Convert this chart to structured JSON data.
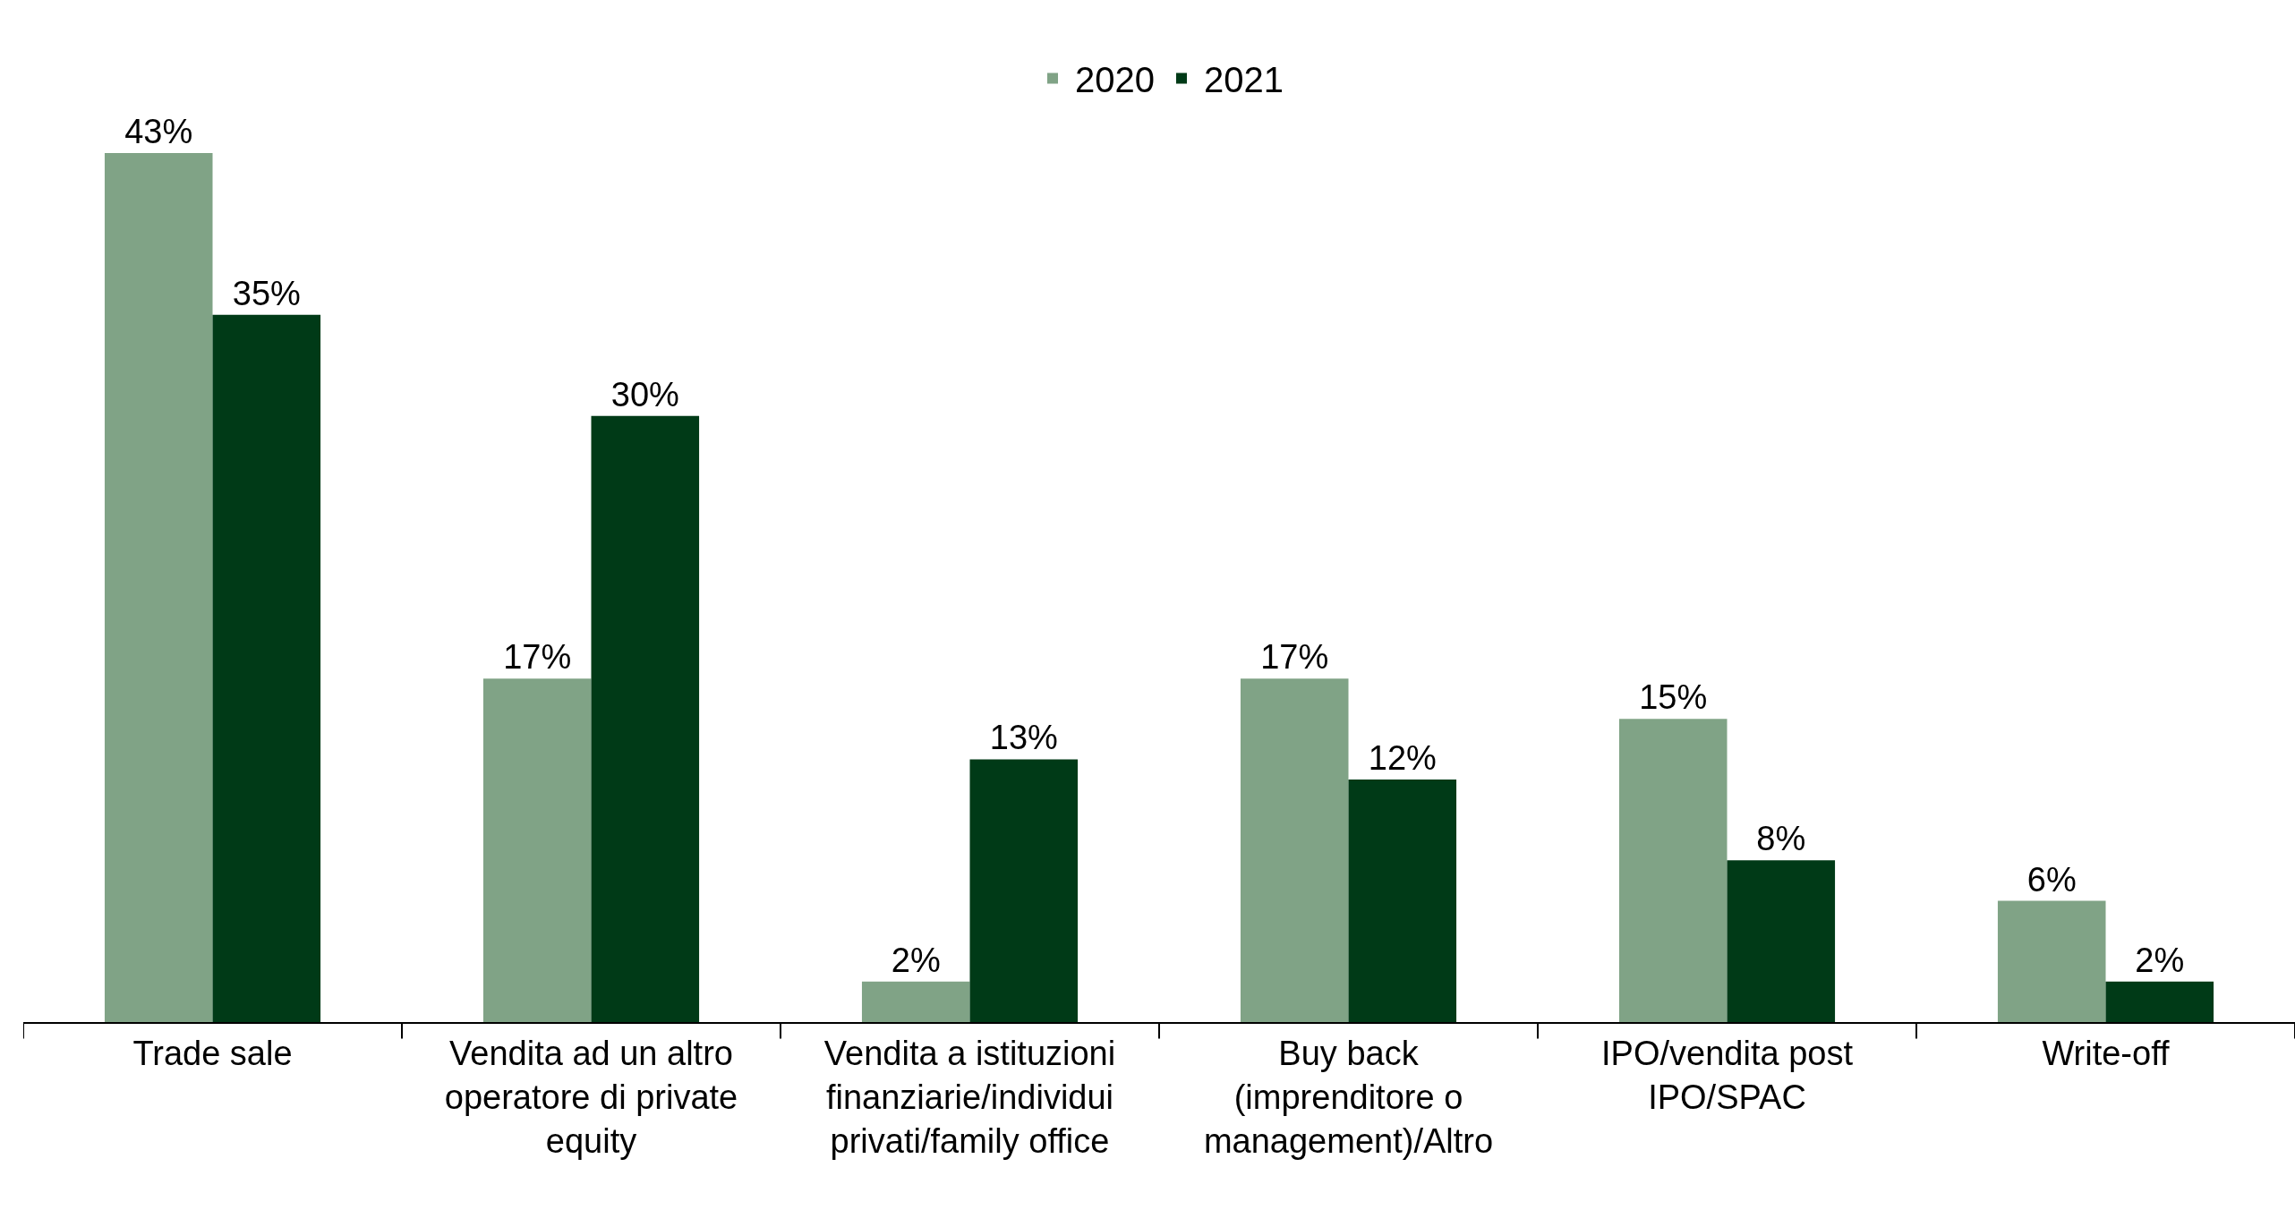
{
  "chart_data": {
    "type": "bar",
    "categories": [
      "Trade sale",
      "Vendita ad un altro operatore di private equity",
      "Vendita a istituzioni finanziarie/individui privati/family office",
      "Buy back (imprenditore o management)/Altro",
      "IPO/vendita post IPO/SPAC",
      "Write-off"
    ],
    "series": [
      {
        "name": "2020",
        "color": "#80a386",
        "values": [
          43,
          17,
          2,
          17,
          15,
          6
        ],
        "value_labels": [
          "43%",
          "17%",
          "2%",
          "17%",
          "15%",
          "6%"
        ]
      },
      {
        "name": "2021",
        "color": "#003a17",
        "values": [
          35,
          30,
          13,
          12,
          8,
          2
        ],
        "value_labels": [
          "35%",
          "30%",
          "13%",
          "12%",
          "8%",
          "2%"
        ]
      }
    ],
    "legend": "top"
  }
}
